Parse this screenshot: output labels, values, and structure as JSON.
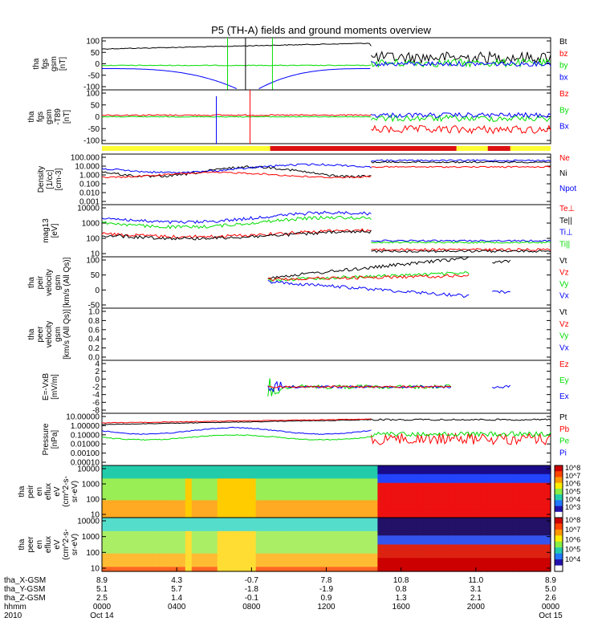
{
  "title": "P5 (TH-A) fields and ground moments overview",
  "chart_data": {
    "type": "line",
    "x_ticks": [
      "0000",
      "0400",
      "0800",
      "1200",
      "1600",
      "2000",
      "0000"
    ],
    "footer": {
      "rows": [
        {
          "label": "tha_X-GSM",
          "values": [
            "8.9",
            "4.3",
            "-0.7",
            "7.8",
            "10.8",
            "11.0",
            "8.9"
          ]
        },
        {
          "label": "tha_Y-GSM",
          "values": [
            "5.1",
            "5.7",
            "-1.8",
            "-1.9",
            "0.8",
            "3.1",
            "5.0"
          ]
        },
        {
          "label": "tha_Z-GSM",
          "values": [
            "2.5",
            "1.4",
            "-0.1",
            "0.9",
            "1.3",
            "2.1",
            "2.6"
          ]
        },
        {
          "label": "hhmm",
          "values": [
            "0000",
            "0400",
            "0800",
            "1200",
            "1600",
            "2000",
            "0000"
          ]
        },
        {
          "label": "2010",
          "values": [
            "Oct 14",
            "",
            "",
            "",
            "",
            "",
            "Oct 15"
          ]
        }
      ]
    },
    "panels": [
      {
        "ylabel": [
          "tha",
          "fgs",
          "gsm",
          "[nT]"
        ],
        "yticks": [
          "100",
          "50",
          "0",
          "-50",
          "-100"
        ],
        "series": [
          {
            "name": "Bt",
            "color": "#000000"
          },
          {
            "name": "bz",
            "color": "#ff0000"
          },
          {
            "name": "by",
            "color": "#00dd00"
          },
          {
            "name": "bx",
            "color": "#0000ff"
          }
        ]
      },
      {
        "ylabel": [
          "tha",
          "fgs",
          "gsm",
          "-T89",
          "[nT]"
        ],
        "yticks": [
          "100",
          "50",
          "0",
          "-50",
          "-100"
        ],
        "series": [
          {
            "name": "Bz",
            "color": "#ff0000"
          },
          {
            "name": "By",
            "color": "#00dd00"
          },
          {
            "name": "Bx",
            "color": "#0000ff"
          }
        ]
      },
      {
        "ylabel": [
          "Density",
          "[1/cc]",
          "[cm-3]"
        ],
        "yticks": [
          "100.000",
          "10.000",
          "1.000",
          "0.100",
          "0.010",
          "0.001"
        ],
        "log": true,
        "series": [
          {
            "name": "Ne",
            "color": "#ff0000"
          },
          {
            "name": "Ni",
            "color": "#000000"
          },
          {
            "name": "Npot",
            "color": "#0000ff"
          }
        ]
      },
      {
        "ylabel": [
          "mag13",
          "[eV]"
        ],
        "yticks": [
          "10000",
          "1000",
          "100",
          "10"
        ],
        "log": true,
        "series": [
          {
            "name": "Te⊥",
            "color": "#ff0000"
          },
          {
            "name": "Te||",
            "color": "#000000"
          },
          {
            "name": "Ti⊥",
            "color": "#0000ff"
          },
          {
            "name": "Ti||",
            "color": "#00dd00"
          }
        ]
      },
      {
        "ylabel": [
          "tha",
          "peir",
          "velocity",
          "gsm",
          "[km/s (All Qs)]"
        ],
        "yticks": [
          "100",
          "50",
          "0",
          "-50"
        ],
        "series": [
          {
            "name": "Vt",
            "color": "#000000"
          },
          {
            "name": "Vz",
            "color": "#ff0000"
          },
          {
            "name": "Vy",
            "color": "#00dd00"
          },
          {
            "name": "Vx",
            "color": "#0000ff"
          }
        ]
      },
      {
        "ylabel": [
          "tha",
          "peer",
          "velocity",
          "gsm",
          "[km/s (All Qs)]"
        ],
        "yticks": [
          "1.0",
          "0.8",
          "0.6",
          "0.4",
          "0.2",
          "0.0"
        ],
        "series": [
          {
            "name": "Vt",
            "color": "#000000"
          },
          {
            "name": "Vz",
            "color": "#ff0000"
          },
          {
            "name": "Vy",
            "color": "#00dd00"
          },
          {
            "name": "Vx",
            "color": "#0000ff"
          }
        ]
      },
      {
        "ylabel": [
          "E=-VxB",
          "[mV/m]"
        ],
        "yticks": [
          "4",
          "2",
          "0",
          "-2",
          "-4",
          "-6",
          "-8"
        ],
        "series": [
          {
            "name": "Ez",
            "color": "#ff0000"
          },
          {
            "name": "Ey",
            "color": "#00dd00"
          },
          {
            "name": "Ex",
            "color": "#0000ff"
          }
        ]
      },
      {
        "ylabel": [
          "Pressure",
          "[nPa]"
        ],
        "yticks": [
          "10.00000",
          "1.00000",
          "0.10000",
          "0.01000",
          "0.00100",
          "0.00010"
        ],
        "log": true,
        "series": [
          {
            "name": "Pt",
            "color": "#000000"
          },
          {
            "name": "Pb",
            "color": "#ff0000"
          },
          {
            "name": "Pe",
            "color": "#00dd00"
          },
          {
            "name": "Pi",
            "color": "#0000ff"
          }
        ]
      },
      {
        "ylabel": [
          "tha",
          "peir",
          "en",
          "eflux",
          "eV",
          "(cm^2-s-",
          "sr-eV)"
        ],
        "yticks": [
          "10000",
          "1000",
          "100",
          "10"
        ],
        "spectrogram": true
      },
      {
        "ylabel": [
          "tha",
          "peer",
          "en",
          "eflux",
          "eV",
          "(cm^2-s-",
          "sr-eV)"
        ],
        "yticks": [
          "10000",
          "1000",
          "100",
          "10"
        ],
        "spectrogram": true
      }
    ],
    "colorbars": [
      {
        "labels": [
          "10^8",
          "10^7",
          "10^6",
          "10^5",
          "10^4",
          "10^3"
        ]
      },
      {
        "labels": [
          "10^8",
          "10^7",
          "10^6",
          "10^5",
          "10^4"
        ]
      }
    ]
  }
}
